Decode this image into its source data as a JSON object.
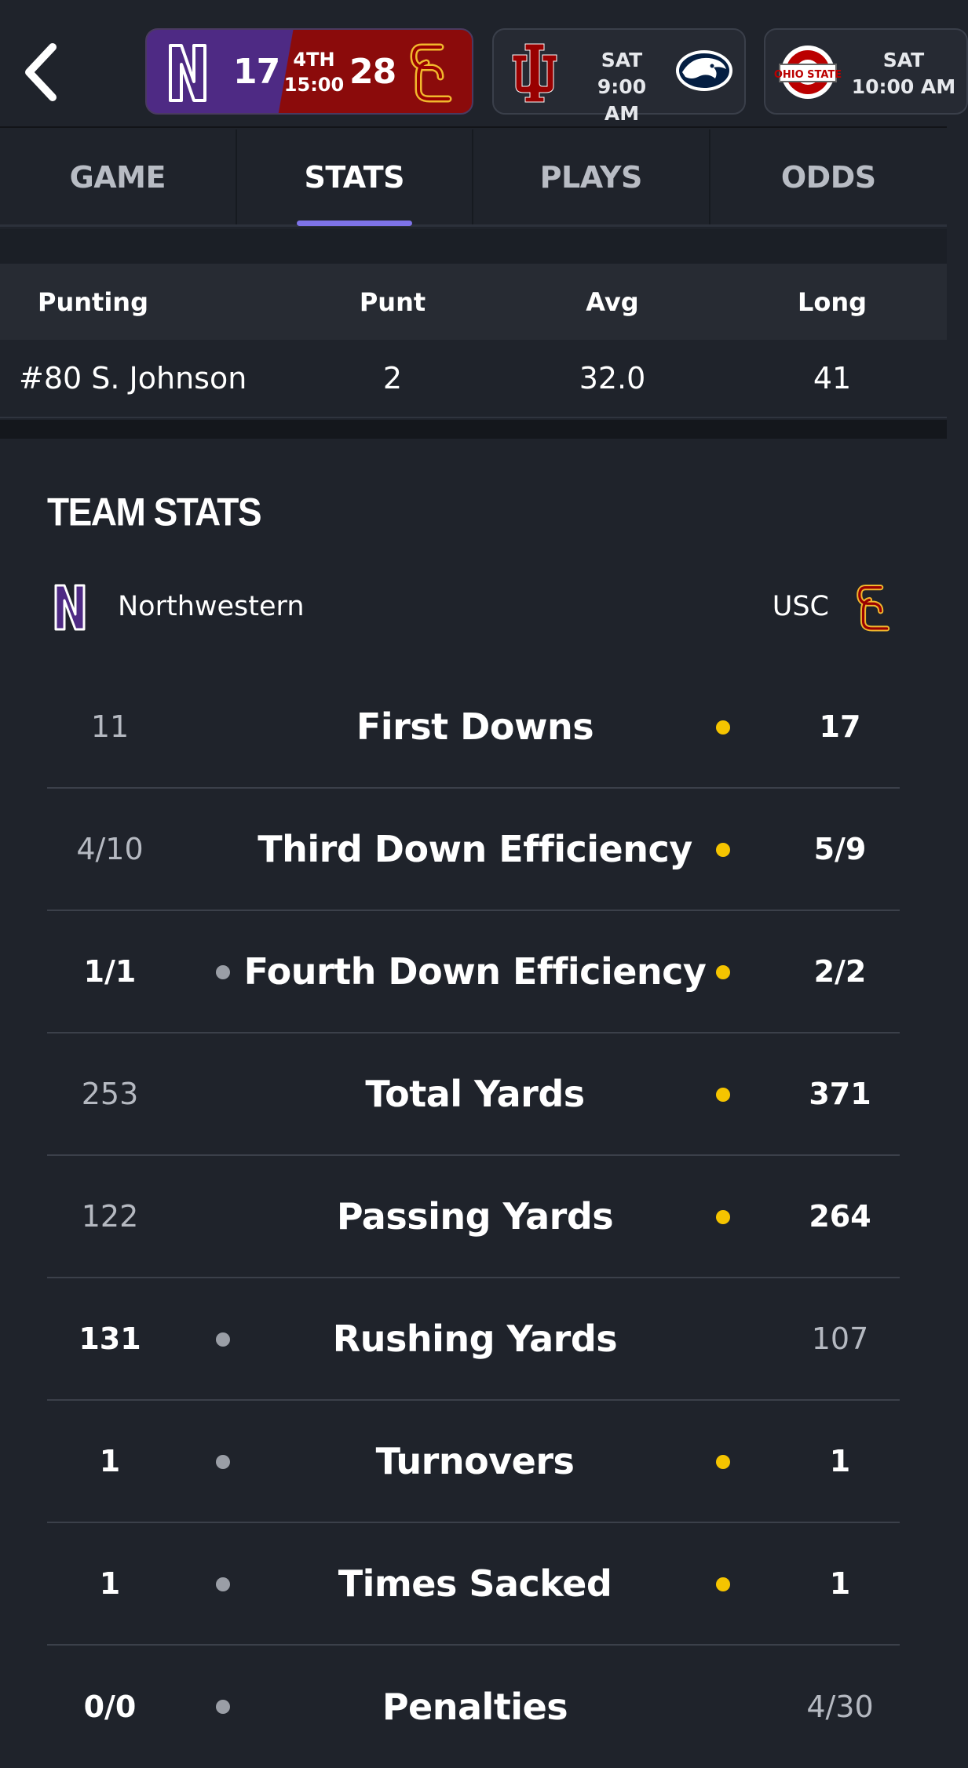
{
  "scoreboard": {
    "live_game": {
      "away_score": "17",
      "home_score": "28",
      "period": "4TH",
      "clock": "15:00",
      "away_team_color": "#4e2a84",
      "home_team_color": "#8b0b0b"
    },
    "game_2": {
      "day": "SAT",
      "time": "9:00 AM"
    },
    "game_3": {
      "day": "SAT",
      "time": "10:00 AM"
    }
  },
  "tabs": [
    {
      "label": "GAME",
      "active": false
    },
    {
      "label": "STATS",
      "active": true
    },
    {
      "label": "PLAYS",
      "active": false
    },
    {
      "label": "ODDS",
      "active": false
    }
  ],
  "accent_color": "#7e73e8",
  "punting": {
    "headers": [
      "Punting",
      "Punt",
      "Avg",
      "Long"
    ],
    "rows": [
      {
        "name": "#80 S. Johnson",
        "punt": "2",
        "avg": "32.0",
        "long": "41"
      }
    ]
  },
  "team_stats": {
    "title": "TEAM STATS",
    "away_team": "Northwestern",
    "home_team": "USC",
    "rows": [
      {
        "label": "First Downs",
        "away": "11",
        "home": "17",
        "away_leads": false,
        "home_leads": true
      },
      {
        "label": "Third Down Efficiency",
        "away": "4/10",
        "home": "5/9",
        "away_leads": false,
        "home_leads": true
      },
      {
        "label": "Fourth Down Efficiency",
        "away": "1/1",
        "home": "2/2",
        "away_leads": true,
        "home_leads": true
      },
      {
        "label": "Total Yards",
        "away": "253",
        "home": "371",
        "away_leads": false,
        "home_leads": true
      },
      {
        "label": "Passing Yards",
        "away": "122",
        "home": "264",
        "away_leads": false,
        "home_leads": true
      },
      {
        "label": "Rushing Yards",
        "away": "131",
        "home": "107",
        "away_leads": true,
        "home_leads": false
      },
      {
        "label": "Turnovers",
        "away": "1",
        "home": "1",
        "away_leads": true,
        "home_leads": true
      },
      {
        "label": "Times Sacked",
        "away": "1",
        "home": "1",
        "away_leads": true,
        "home_leads": true
      },
      {
        "label": "Penalties",
        "away": "0/0",
        "home": "4/30",
        "away_leads": true,
        "home_leads": false
      }
    ]
  }
}
